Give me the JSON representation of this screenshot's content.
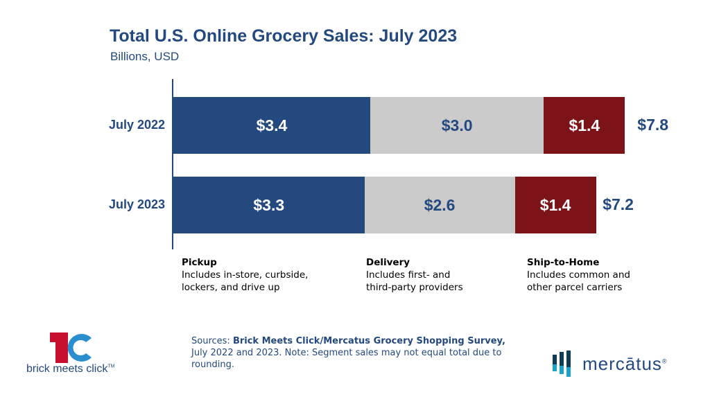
{
  "chart_data": {
    "type": "bar",
    "orientation": "horizontal",
    "stacked": true,
    "title": "Total U.S. Online Grocery Sales: July 2023",
    "subtitle": "Billions, USD",
    "categories": [
      "July 2022",
      "July 2023"
    ],
    "series": [
      {
        "name": "Pickup",
        "values": [
          3.4,
          3.3
        ],
        "labels": [
          "$3.4",
          "$3.3"
        ],
        "color": "#23497e",
        "label_color": "#ffffff"
      },
      {
        "name": "Delivery",
        "values": [
          3.0,
          2.6
        ],
        "labels": [
          "$3.0",
          "$2.6"
        ],
        "color": "#cbcbcb",
        "label_color": "#23497e"
      },
      {
        "name": "Ship-to-Home",
        "values": [
          1.4,
          1.4
        ],
        "labels": [
          "$1.4",
          "$1.4"
        ],
        "color": "#7b1319",
        "label_color": "#ffffff"
      }
    ],
    "totals": [
      7.8,
      7.2
    ],
    "total_labels": [
      "$7.8",
      "$7.2"
    ],
    "grid": false
  },
  "legend": [
    {
      "name": "Pickup",
      "desc": "Includes in-store, curbside, lockers, and drive up",
      "color": "#23497e"
    },
    {
      "name": "Delivery",
      "desc": "Includes first- and third-party providers",
      "color": "#6b6b6b"
    },
    {
      "name": "Ship-to-Home",
      "desc": "Includes common and other parcel carriers",
      "color": "#8a1a20"
    }
  ],
  "sources": {
    "prefix": "Sources: ",
    "bold": "Brick Meets Click/Mercatus Grocery Shopping Survey,",
    "rest": " July 2022 and 2023. Note: Segment sales may not equal total due to rounding."
  },
  "logos": {
    "bmc": "brick meets click",
    "bmc_tm": "TM",
    "mercatus": "mercātus",
    "mercatus_reg": "®"
  }
}
